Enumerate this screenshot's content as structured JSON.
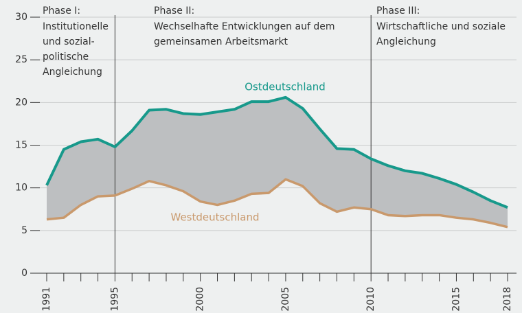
{
  "chart_data": {
    "type": "line",
    "x": [
      1991,
      1992,
      1993,
      1994,
      1995,
      1996,
      1997,
      1998,
      1999,
      2000,
      2001,
      2002,
      2003,
      2004,
      2005,
      2006,
      2007,
      2008,
      2009,
      2010,
      2011,
      2012,
      2013,
      2014,
      2015,
      2016,
      2017,
      2018
    ],
    "series": [
      {
        "name": "Ostdeutschland",
        "color": "#17998b",
        "values": [
          10.3,
          14.5,
          15.4,
          15.7,
          14.8,
          16.7,
          19.1,
          19.2,
          18.7,
          18.6,
          18.9,
          19.2,
          20.1,
          20.1,
          20.6,
          19.3,
          16.9,
          14.6,
          14.5,
          13.4,
          12.6,
          12.0,
          11.7,
          11.1,
          10.4,
          9.5,
          8.5,
          7.7
        ]
      },
      {
        "name": "Westdeutschland",
        "color": "#c9996c",
        "values": [
          6.3,
          6.5,
          8.0,
          9.0,
          9.1,
          9.9,
          10.8,
          10.3,
          9.6,
          8.4,
          8.0,
          8.5,
          9.3,
          9.4,
          11.0,
          10.2,
          8.2,
          7.2,
          7.7,
          7.5,
          6.8,
          6.7,
          6.8,
          6.8,
          6.5,
          6.3,
          5.9,
          5.4
        ]
      }
    ],
    "fill_between": "#bdbfc1",
    "xlim": [
      1991,
      2018
    ],
    "xticks": [
      1991,
      1995,
      2000,
      2005,
      2010,
      2015,
      2018
    ],
    "ylim": [
      0,
      30
    ],
    "yticks": [
      0,
      5,
      10,
      15,
      20,
      25,
      30
    ],
    "grid": true,
    "dividers": [
      1995,
      2010
    ],
    "annotations": [
      {
        "title": "Phase I:",
        "lines": [
          "Institutionelle",
          "und sozial-",
          "politische",
          "Angleichung"
        ]
      },
      {
        "title": "Phase II:",
        "lines": [
          "Wechselhafte Entwicklungen auf dem",
          "gemeinsamen Arbeitsmarkt"
        ]
      },
      {
        "title": "Phase III:",
        "lines": [
          "Wirtschaftliche und soziale",
          "Angleichung"
        ]
      }
    ]
  }
}
